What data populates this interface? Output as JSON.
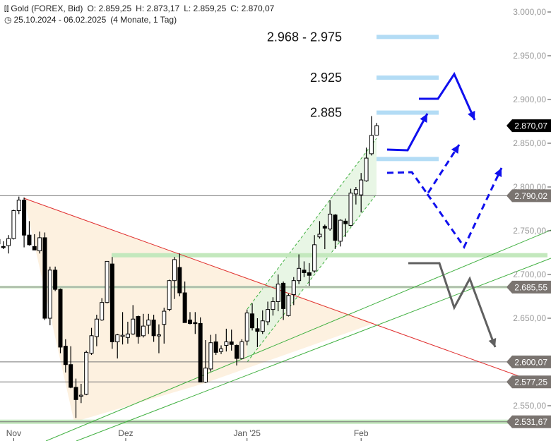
{
  "header": {
    "instrument": "Gold (FOREX, Bid)",
    "open": "O: 2.859,25",
    "high": "H: 2.873,17",
    "low": "L: 2.859,25",
    "close": "C: 2.870,07",
    "range": "25.10.2024 - 06.02.2025",
    "period": "(4 Monate, 1 Tag)",
    "chart_icon": "candlestick-icon",
    "clock_icon": "clock-icon"
  },
  "colors": {
    "up": "#ffffff",
    "down": "#000000",
    "resistance_line": "#e03030",
    "support_line": "#40b040",
    "target_band": "#b3dcf5",
    "arrow_bull": "#1010ee",
    "arrow_bear": "#606060",
    "triangle_fill": "#fdf1e0",
    "channel_fill": "#e4f4e0"
  },
  "chart_data": {
    "type": "candlestick",
    "ylim": [
      2520,
      3010
    ],
    "y_ticks": [
      {
        "v": 3000,
        "label": "3.000,00"
      },
      {
        "v": 2950,
        "label": "2.950,00"
      },
      {
        "v": 2900,
        "label": "2.900,00"
      },
      {
        "v": 2850,
        "label": "2.850,00"
      },
      {
        "v": 2800,
        "label": "2.800,00"
      },
      {
        "v": 2750,
        "label": "2.750,00"
      },
      {
        "v": 2700,
        "label": "2.700,00"
      },
      {
        "v": 2650,
        "label": "2.650,00"
      },
      {
        "v": 2550,
        "label": "2.550,00"
      }
    ],
    "x_ticks": [
      {
        "i": 3,
        "label": "Nov"
      },
      {
        "i": 24.6,
        "label": "Dez"
      },
      {
        "i": 48,
        "label": "Jan '25"
      },
      {
        "i": 70,
        "label": "Feb"
      }
    ],
    "ohlc": [
      [
        2740,
        2745,
        2730,
        2735
      ],
      [
        2732,
        2738,
        2729,
        2731
      ],
      [
        2733,
        2745,
        2724,
        2741
      ],
      [
        2741,
        2774,
        2740,
        2773
      ],
      [
        2773,
        2789,
        2769,
        2785
      ],
      [
        2785,
        2788,
        2731,
        2745
      ],
      [
        2745,
        2761,
        2733,
        2734
      ],
      [
        2732,
        2746,
        2728,
        2728
      ],
      [
        2727,
        2749,
        2724,
        2742
      ],
      [
        2742,
        2748,
        2648,
        2650
      ],
      [
        2650,
        2709,
        2642,
        2705
      ],
      [
        2705,
        2709,
        2681,
        2683
      ],
      [
        2683,
        2684,
        2610,
        2617
      ],
      [
        2618,
        2626,
        2588,
        2597
      ],
      [
        2597,
        2618,
        2570,
        2571
      ],
      [
        2571,
        2581,
        2536,
        2557
      ],
      [
        2561,
        2575,
        2553,
        2562
      ],
      [
        2563,
        2613,
        2562,
        2611
      ],
      [
        2610,
        2639,
        2608,
        2630
      ],
      [
        2629,
        2654,
        2618,
        2649
      ],
      [
        2648,
        2673,
        2647,
        2668
      ],
      [
        2668,
        2715,
        2667,
        2715
      ],
      [
        2712,
        2720,
        2615,
        2623
      ],
      [
        2623,
        2632,
        2604,
        2631
      ],
      [
        2630,
        2657,
        2620,
        2630.5
      ],
      [
        2628,
        2646,
        2621,
        2632
      ],
      [
        2632,
        2665,
        2631,
        2649
      ],
      [
        2652,
        2653,
        2621,
        2629
      ],
      [
        2630,
        2655,
        2628,
        2641
      ],
      [
        2642,
        2655,
        2632,
        2648
      ],
      [
        2648,
        2654,
        2623,
        2630
      ],
      [
        2631,
        2643,
        2610,
        2631
      ],
      [
        2643,
        2662,
        2621,
        2658
      ],
      [
        2660,
        2694,
        2658,
        2693
      ],
      [
        2693,
        2720,
        2672,
        2717
      ],
      [
        2708,
        2724,
        2675,
        2679
      ],
      [
        2679,
        2692,
        2645,
        2645
      ],
      [
        2648,
        2657,
        2643,
        2644
      ],
      [
        2645,
        2657,
        2632,
        2644
      ],
      [
        2644,
        2651,
        2577,
        2577
      ],
      [
        2577,
        2625,
        2576,
        2593
      ],
      [
        2592,
        2631,
        2589,
        2622
      ],
      [
        2623,
        2632,
        2608,
        2611
      ],
      [
        2612,
        2619,
        2609,
        2615
      ],
      [
        2619,
        2638,
        2612,
        2623
      ],
      [
        2623,
        2637,
        2613,
        2620
      ],
      [
        2619,
        2620,
        2596,
        2604
      ],
      [
        2604,
        2626,
        2603,
        2623
      ],
      [
        2624,
        2660,
        2619,
        2656
      ],
      [
        2655,
        2667,
        2636,
        2639
      ],
      [
        2638,
        2650,
        2617,
        2635
      ],
      [
        2635,
        2659,
        2632,
        2647
      ],
      [
        2646,
        2669,
        2642,
        2660
      ],
      [
        2660,
        2674,
        2653,
        2669
      ],
      [
        2669,
        2700,
        2658,
        2689
      ],
      [
        2690,
        2692,
        2648,
        2661
      ],
      [
        2653,
        2678,
        2652,
        2676
      ],
      [
        2677,
        2697,
        2665,
        2693
      ],
      [
        2693,
        2723,
        2689,
        2707
      ],
      [
        2705,
        2715,
        2697,
        2702
      ],
      [
        2702,
        2713,
        2687,
        2699
      ],
      [
        2704,
        2745,
        2702,
        2734
      ],
      [
        2743,
        2761,
        2741,
        2746
      ],
      [
        2755,
        2757,
        2729,
        2753
      ],
      [
        2752,
        2785,
        2750,
        2769
      ],
      [
        2768,
        2769,
        2729,
        2739
      ],
      [
        2738,
        2763,
        2732,
        2762
      ],
      [
        2761,
        2764,
        2743,
        2758
      ],
      [
        2756,
        2798,
        2755,
        2793
      ],
      [
        2792,
        2800,
        2780,
        2797
      ],
      [
        2791,
        2816,
        2771,
        2808
      ],
      [
        2807,
        2845,
        2806,
        2833
      ],
      [
        2838,
        2881,
        2836,
        2859
      ],
      [
        2859.25,
        2873.17,
        2859.25,
        2870.07
      ]
    ],
    "last_price": {
      "v": 2870.07,
      "label": "2.870,07"
    },
    "levels": [
      {
        "v": 2790.02,
        "label": "2.790,02"
      },
      {
        "v": 2685.55,
        "label": "2.685,55"
      },
      {
        "v": 2600.07,
        "label": "2.600,07"
      },
      {
        "v": 2577.25,
        "label": "2.577,25"
      },
      {
        "v": 2531.67,
        "label": "2.531,67"
      }
    ],
    "targets": [
      {
        "v": 2971.5,
        "label": "2.968 - 2.975"
      },
      {
        "v": 2925,
        "label": "2.925"
      },
      {
        "v": 2885,
        "label": "2.885"
      },
      {
        "v": 2832,
        "label": ""
      }
    ],
    "support_zone": 2722
  }
}
